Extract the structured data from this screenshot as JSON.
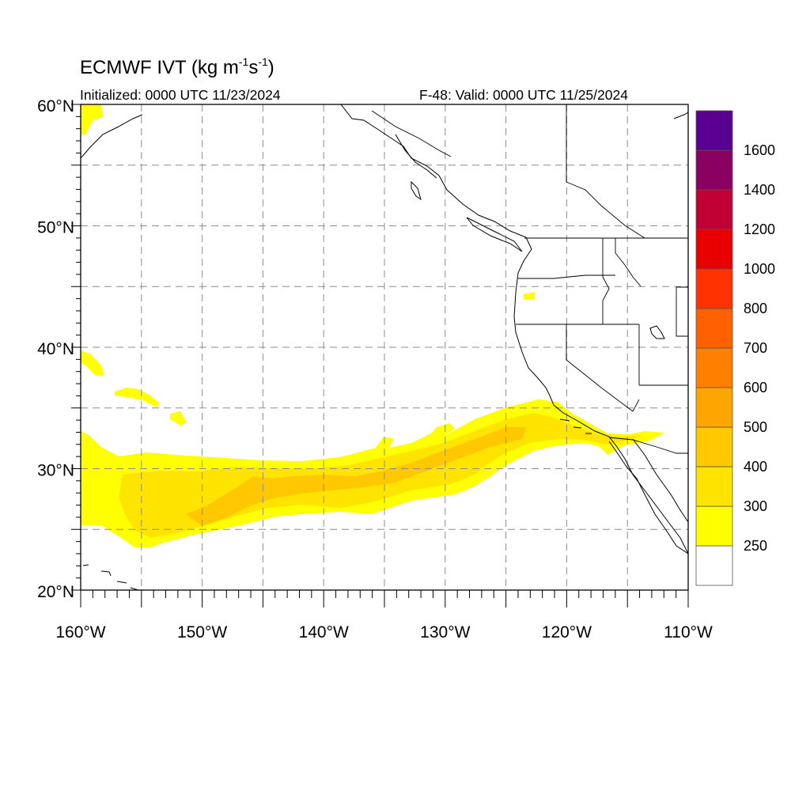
{
  "header": {
    "product": "ECMWF IVT (kg m",
    "unit_exp1": "-1",
    "unit_mid": "s",
    "unit_exp2": "-1",
    "unit_close": ")",
    "initialized": "Initialized: 0000 UTC 11/23/2024",
    "valid": "F-48: Valid: 0000 UTC 11/25/2024"
  },
  "map": {
    "lon_range": [
      -160,
      -110
    ],
    "lat_range": [
      20,
      60
    ],
    "lon_ticks": [
      {
        "value": -160,
        "label": "160°W"
      },
      {
        "value": -150,
        "label": "150°W"
      },
      {
        "value": -140,
        "label": "140°W"
      },
      {
        "value": -130,
        "label": "130°W"
      },
      {
        "value": -120,
        "label": "120°W"
      },
      {
        "value": -110,
        "label": "110°W"
      }
    ],
    "lat_ticks": [
      {
        "value": 20,
        "label": "20°N"
      },
      {
        "value": 30,
        "label": "30°N"
      },
      {
        "value": 40,
        "label": "40°N"
      },
      {
        "value": 50,
        "label": "50°N"
      },
      {
        "value": 60,
        "label": "60°N"
      }
    ],
    "gridline_interval_deg": 5,
    "gridline_style": "dashed gray",
    "coastline_color": "#000000"
  },
  "colorbar": {
    "levels": [
      {
        "label": "",
        "color": "#ffffff"
      },
      {
        "label": "250",
        "color": "#ffff00"
      },
      {
        "label": "300",
        "color": "#ffe400"
      },
      {
        "label": "400",
        "color": "#ffc800"
      },
      {
        "label": "500",
        "color": "#ffa500"
      },
      {
        "label": "600",
        "color": "#ff8000"
      },
      {
        "label": "700",
        "color": "#ff6000"
      },
      {
        "label": "800",
        "color": "#ff3200"
      },
      {
        "label": "1000",
        "color": "#e80000"
      },
      {
        "label": "1200",
        "color": "#c00035"
      },
      {
        "label": "1400",
        "color": "#8a0060"
      },
      {
        "label": "1600",
        "color": "#5a0090"
      }
    ]
  },
  "ivt_features": [
    {
      "name": "main atmospheric river",
      "level": "250"
    },
    {
      "name": "atmospheric river core",
      "level": "300"
    },
    {
      "name": "atmospheric river max",
      "level": "400"
    },
    {
      "name": "small patches",
      "level": "250"
    }
  ]
}
